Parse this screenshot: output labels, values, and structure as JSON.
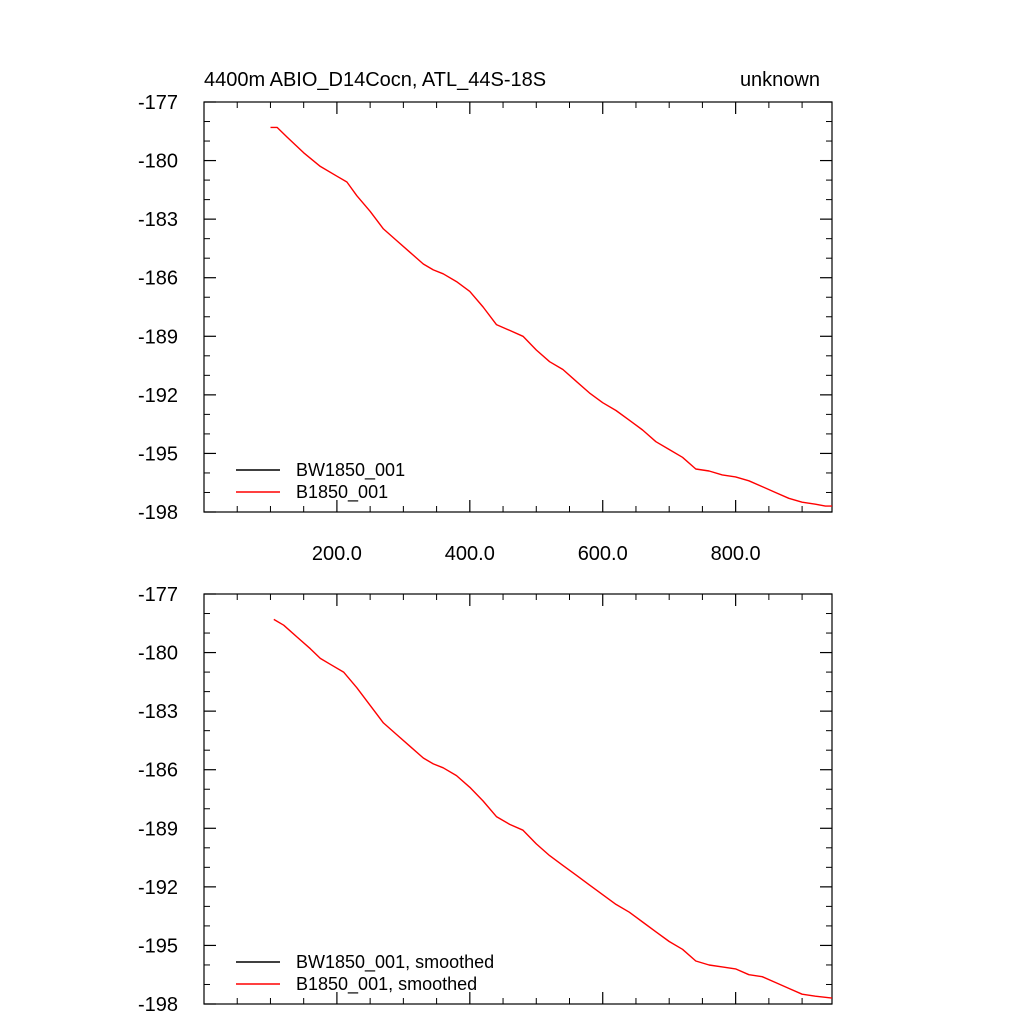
{
  "title_left": "4400m ABIO_D14Cocn, ATL_44S-18S",
  "title_right": "unknown",
  "colors": {
    "series_1": "#000000",
    "series_2": "#ff0000",
    "axes": "#000000"
  },
  "chart_data": [
    {
      "type": "line",
      "title": "4400m ABIO_D14Cocn, ATL_44S-18S",
      "xlim": [
        0,
        945
      ],
      "ylim": [
        -198,
        -177
      ],
      "x_ticks": [
        200,
        400,
        600,
        800
      ],
      "x_tick_labels": [
        "200.0",
        "400.0",
        "600.0",
        "800.0"
      ],
      "x_tick_labels_shown": true,
      "y_ticks": [
        -177,
        -180,
        -183,
        -186,
        -189,
        -192,
        -195,
        -198
      ],
      "y_tick_labels": [
        "-177",
        "-180",
        "-183",
        "-186",
        "-189",
        "-192",
        "-195",
        "-198"
      ],
      "legend_position": "bottom-left",
      "series": [
        {
          "name": "BW1850_001",
          "color": "#000000",
          "x": [],
          "y": []
        },
        {
          "name": "B1850_001",
          "color": "#ff0000",
          "x": [
            100,
            110,
            125,
            150,
            175,
            200,
            215,
            230,
            250,
            270,
            290,
            310,
            330,
            345,
            360,
            380,
            400,
            420,
            440,
            460,
            480,
            500,
            520,
            540,
            560,
            580,
            600,
            620,
            640,
            660,
            680,
            700,
            720,
            740,
            760,
            780,
            800,
            820,
            840,
            860,
            880,
            900,
            920,
            935,
            945
          ],
          "y": [
            -178.3,
            -178.3,
            -178.8,
            -179.6,
            -180.3,
            -180.8,
            -181.1,
            -181.8,
            -182.6,
            -183.5,
            -184.1,
            -184.7,
            -185.3,
            -185.6,
            -185.8,
            -186.2,
            -186.7,
            -187.5,
            -188.4,
            -188.7,
            -189.0,
            -189.7,
            -190.3,
            -190.7,
            -191.3,
            -191.9,
            -192.4,
            -192.8,
            -193.3,
            -193.8,
            -194.4,
            -194.8,
            -195.2,
            -195.8,
            -195.9,
            -196.1,
            -196.2,
            -196.4,
            -196.7,
            -197.0,
            -197.3,
            -197.5,
            -197.6,
            -197.7,
            -197.7
          ]
        }
      ]
    },
    {
      "type": "line",
      "title": "",
      "xlim": [
        0,
        945
      ],
      "ylim": [
        -198,
        -177
      ],
      "x_ticks": [
        200,
        400,
        600,
        800
      ],
      "x_tick_labels_shown": false,
      "y_ticks": [
        -177,
        -180,
        -183,
        -186,
        -189,
        -192,
        -195,
        -198
      ],
      "y_tick_labels": [
        "-177",
        "-180",
        "-183",
        "-186",
        "-189",
        "-192",
        "-195",
        "-198"
      ],
      "legend_position": "bottom-left",
      "series": [
        {
          "name": "BW1850_001, smoothed",
          "color": "#000000",
          "x": [],
          "y": []
        },
        {
          "name": "B1850_001, smoothed",
          "color": "#ff0000",
          "x": [
            105,
            120,
            140,
            160,
            175,
            190,
            210,
            230,
            250,
            270,
            290,
            310,
            330,
            345,
            360,
            380,
            400,
            420,
            440,
            460,
            480,
            500,
            520,
            540,
            560,
            580,
            600,
            620,
            640,
            660,
            680,
            700,
            720,
            740,
            760,
            780,
            800,
            820,
            840,
            860,
            880,
            900,
            920,
            945
          ],
          "y": [
            -178.3,
            -178.6,
            -179.2,
            -179.8,
            -180.3,
            -180.6,
            -181.0,
            -181.8,
            -182.7,
            -183.6,
            -184.2,
            -184.8,
            -185.4,
            -185.7,
            -185.9,
            -186.3,
            -186.9,
            -187.6,
            -188.4,
            -188.8,
            -189.1,
            -189.8,
            -190.4,
            -190.9,
            -191.4,
            -191.9,
            -192.4,
            -192.9,
            -193.3,
            -193.8,
            -194.3,
            -194.8,
            -195.2,
            -195.8,
            -196.0,
            -196.1,
            -196.2,
            -196.5,
            -196.6,
            -196.9,
            -197.2,
            -197.5,
            -197.6,
            -197.7
          ]
        }
      ]
    }
  ]
}
